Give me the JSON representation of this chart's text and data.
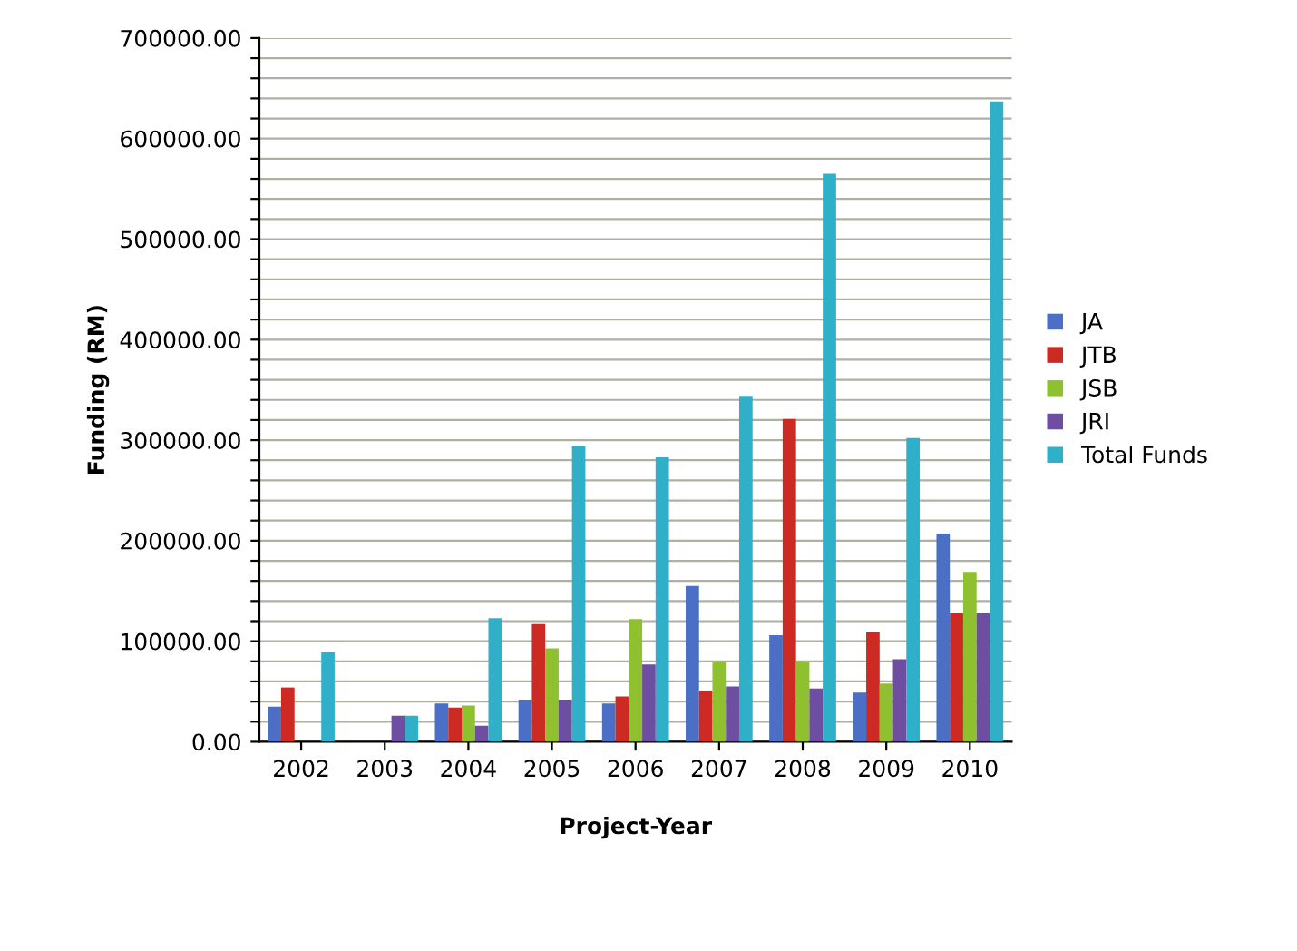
{
  "chart_data": {
    "type": "bar",
    "xlabel": "Project-Year",
    "ylabel": "Funding (RM)",
    "categories": [
      "2002",
      "2003",
      "2004",
      "2005",
      "2006",
      "2007",
      "2008",
      "2009",
      "2010"
    ],
    "series": [
      {
        "name": "JA",
        "color": "#4a6fc4",
        "values": [
          35000,
          0,
          38000,
          42000,
          38000,
          155000,
          106000,
          49000,
          207000
        ]
      },
      {
        "name": "JTB",
        "color": "#cc2a22",
        "values": [
          54000,
          0,
          34000,
          117000,
          45000,
          51000,
          321000,
          109000,
          128000
        ]
      },
      {
        "name": "JSB",
        "color": "#8fc030",
        "values": [
          0,
          0,
          36000,
          93000,
          122000,
          80000,
          80000,
          58000,
          169000
        ]
      },
      {
        "name": "JRI",
        "color": "#6e4ea0",
        "values": [
          0,
          26000,
          16000,
          42000,
          77000,
          55000,
          53000,
          82000,
          128000
        ]
      },
      {
        "name": "Total Funds",
        "color": "#2fb0c8",
        "values": [
          89000,
          26000,
          123000,
          294000,
          283000,
          344000,
          565000,
          302000,
          637000
        ]
      }
    ],
    "ylim": [
      0,
      700000
    ],
    "yticks": [
      {
        "value": 0,
        "label": "0.00"
      },
      {
        "value": 20000,
        "label": null
      },
      {
        "value": 40000,
        "label": null
      },
      {
        "value": 60000,
        "label": null
      },
      {
        "value": 80000,
        "label": null
      },
      {
        "value": 100000,
        "label": "100000.00"
      },
      {
        "value": 120000,
        "label": null
      },
      {
        "value": 140000,
        "label": null
      },
      {
        "value": 160000,
        "label": null
      },
      {
        "value": 180000,
        "label": null
      },
      {
        "value": 200000,
        "label": "200000.00"
      },
      {
        "value": 220000,
        "label": null
      },
      {
        "value": 240000,
        "label": null
      },
      {
        "value": 260000,
        "label": null
      },
      {
        "value": 280000,
        "label": null
      },
      {
        "value": 300000,
        "label": "300000.00"
      },
      {
        "value": 320000,
        "label": null
      },
      {
        "value": 340000,
        "label": null
      },
      {
        "value": 360000,
        "label": null
      },
      {
        "value": 380000,
        "label": null
      },
      {
        "value": 400000,
        "label": "400000.00"
      },
      {
        "value": 420000,
        "label": null
      },
      {
        "value": 440000,
        "label": null
      },
      {
        "value": 460000,
        "label": null
      },
      {
        "value": 480000,
        "label": null
      },
      {
        "value": 500000,
        "label": "500000.00"
      },
      {
        "value": 520000,
        "label": null
      },
      {
        "value": 540000,
        "label": null
      },
      {
        "value": 560000,
        "label": null
      },
      {
        "value": 580000,
        "label": null
      },
      {
        "value": 600000,
        "label": "600000.00"
      },
      {
        "value": 620000,
        "label": null
      },
      {
        "value": 640000,
        "label": null
      },
      {
        "value": 660000,
        "label": null
      },
      {
        "value": 680000,
        "label": null
      },
      {
        "value": 700000,
        "label": "700000.00"
      }
    ],
    "grid": "y",
    "legend": "right"
  }
}
